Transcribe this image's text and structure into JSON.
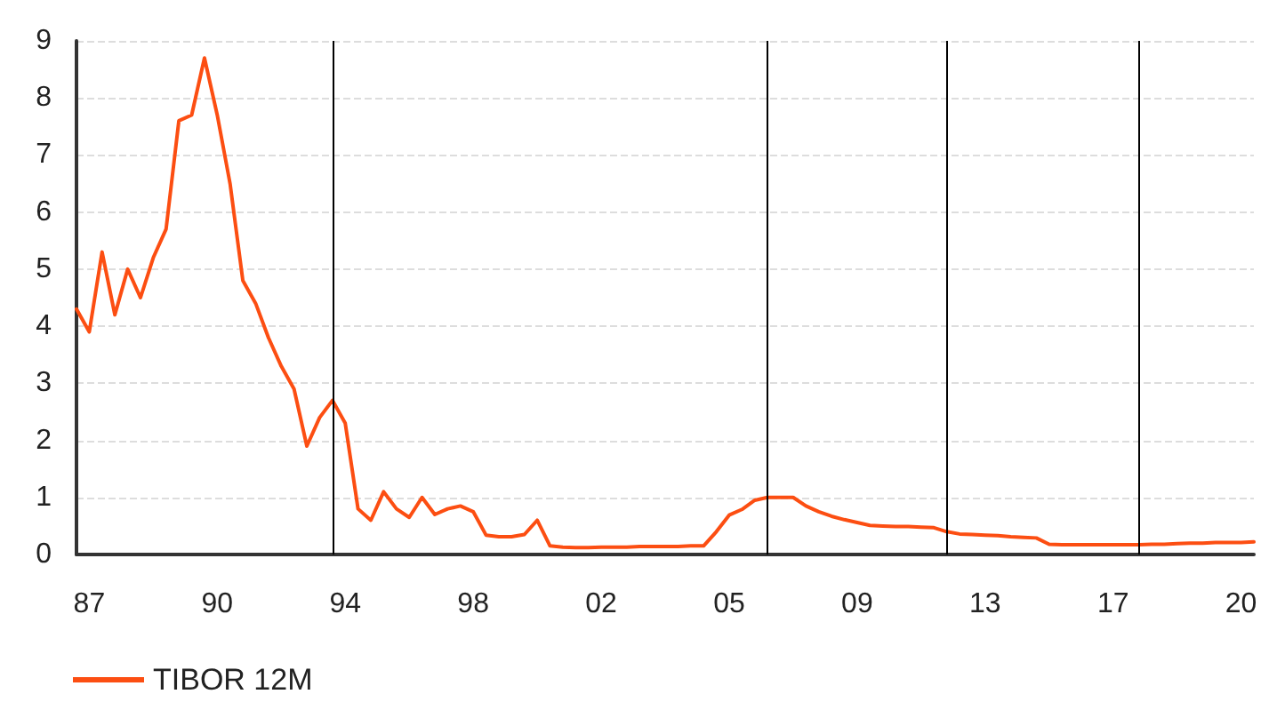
{
  "chart_data": {
    "type": "line",
    "grid": "y",
    "legend": "bottom left",
    "marker": "none",
    "line_style": "solid",
    "categories": [
      null,
      "87",
      null,
      null,
      null,
      null,
      null,
      null,
      null,
      null,
      null,
      "90",
      null,
      null,
      null,
      null,
      null,
      null,
      null,
      null,
      null,
      "94",
      null,
      null,
      null,
      null,
      null,
      null,
      null,
      null,
      null,
      "98",
      null,
      null,
      null,
      null,
      null,
      null,
      null,
      null,
      null,
      "02",
      null,
      null,
      null,
      null,
      null,
      null,
      null,
      null,
      null,
      "05",
      null,
      null,
      null,
      null,
      null,
      null,
      null,
      null,
      null,
      "09",
      null,
      null,
      null,
      null,
      null,
      null,
      null,
      null,
      null,
      "13",
      null,
      null,
      null,
      null,
      null,
      null,
      null,
      null,
      null,
      "17",
      null,
      null,
      null,
      null,
      null,
      null,
      null,
      null,
      null,
      "20",
      null
    ],
    "ylim": [
      0,
      9
    ],
    "yticks": [
      0,
      1,
      2,
      3,
      4,
      5,
      6,
      7,
      8,
      9
    ],
    "series": [
      {
        "name": "TIBOR 12M",
        "color": "#fc4e12",
        "values": [
          4.3,
          3.9,
          5.3,
          4.2,
          5.0,
          4.5,
          5.2,
          5.7,
          7.6,
          7.7,
          8.7,
          7.7,
          6.5,
          4.8,
          4.4,
          3.8,
          3.3,
          2.9,
          1.9,
          2.4,
          2.7,
          2.3,
          0.8,
          0.6,
          1.1,
          0.8,
          0.65,
          1.0,
          0.7,
          0.8,
          0.85,
          0.75,
          0.34,
          0.31,
          0.31,
          0.35,
          0.6,
          0.15,
          0.13,
          0.12,
          0.12,
          0.13,
          0.13,
          0.13,
          0.14,
          0.14,
          0.14,
          0.14,
          0.15,
          0.15,
          0.4,
          0.69,
          0.79,
          0.95,
          1.0,
          1.0,
          1.0,
          0.85,
          0.75,
          0.67,
          0.61,
          0.56,
          0.51,
          0.5,
          0.49,
          0.49,
          0.48,
          0.47,
          0.4,
          0.36,
          0.35,
          0.34,
          0.33,
          0.31,
          0.3,
          0.29,
          0.18,
          0.17,
          0.17,
          0.17,
          0.17,
          0.17,
          0.17,
          0.17,
          0.18,
          0.18,
          0.19,
          0.2,
          0.2,
          0.21,
          0.21,
          0.21,
          0.22
        ]
      }
    ]
  }
}
